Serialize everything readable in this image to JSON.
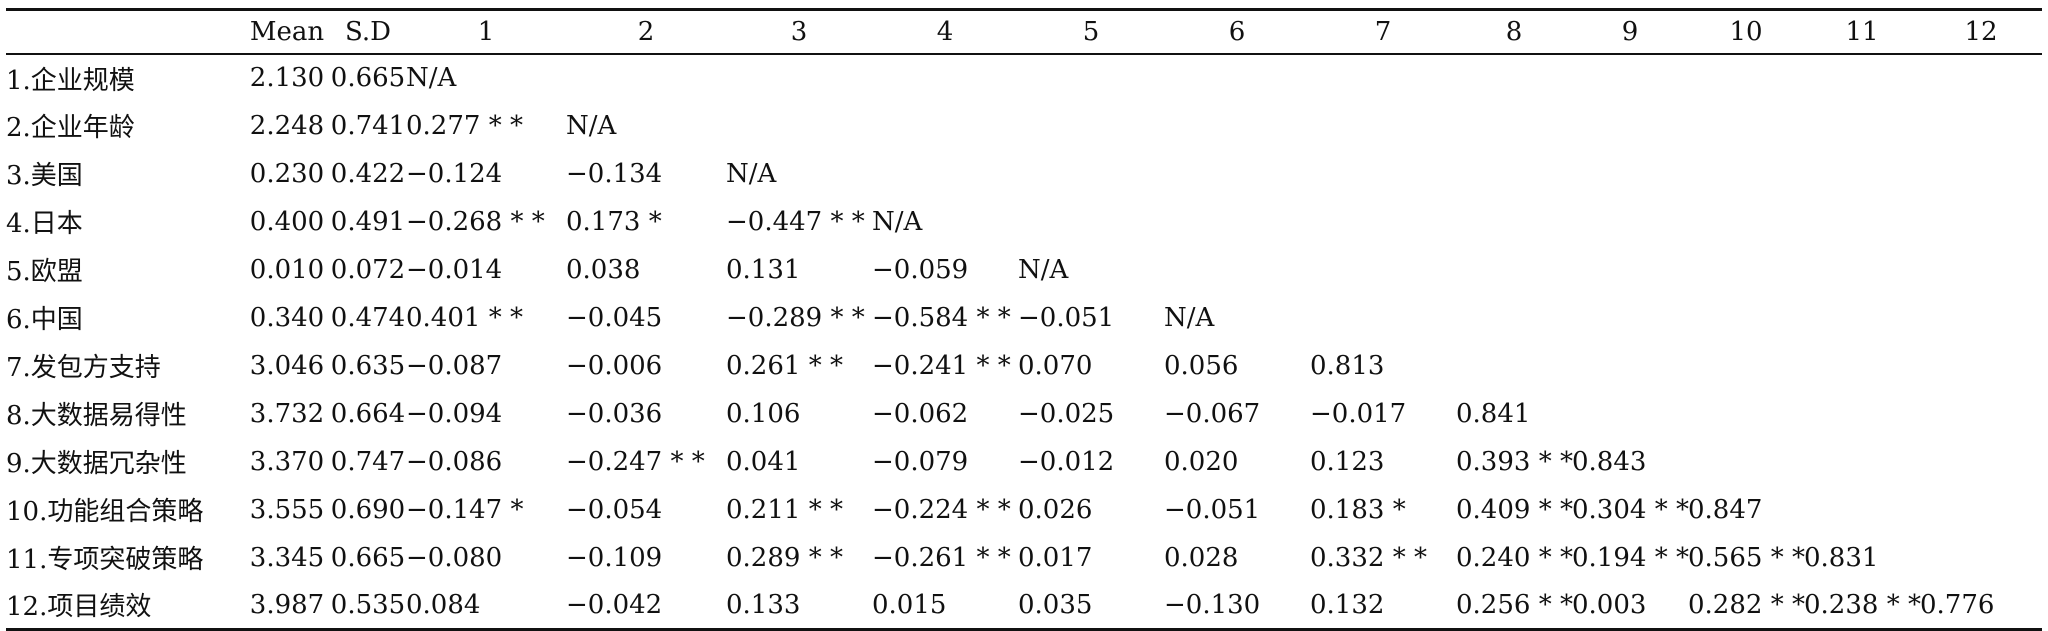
{
  "table": {
    "headers": [
      "",
      "Mean",
      "S.D",
      "1",
      "2",
      "3",
      "4",
      "5",
      "6",
      "7",
      "8",
      "9",
      "10",
      "11",
      "12"
    ],
    "rows": [
      {
        "label": "1.企业规模",
        "mean": "2.130",
        "sd": "0.665",
        "cells": [
          "N/A"
        ]
      },
      {
        "label": "2.企业年龄",
        "mean": "2.248",
        "sd": "0.741",
        "cells": [
          "0.277 * *",
          "N/A"
        ]
      },
      {
        "label": "3.美国",
        "mean": "0.230",
        "sd": "0.422",
        "cells": [
          "−0.124",
          "−0.134",
          "N/A"
        ]
      },
      {
        "label": "4.日本",
        "mean": "0.400",
        "sd": "0.491",
        "cells": [
          "−0.268 * *",
          "0.173 *",
          "−0.447 * *",
          "N/A"
        ]
      },
      {
        "label": "5.欧盟",
        "mean": "0.010",
        "sd": "0.072",
        "cells": [
          "−0.014",
          "0.038",
          "0.131",
          "−0.059",
          "N/A"
        ]
      },
      {
        "label": "6.中国",
        "mean": "0.340",
        "sd": "0.474",
        "cells": [
          "0.401 * *",
          "−0.045",
          "−0.289 * *",
          "−0.584 * *",
          "−0.051",
          "N/A"
        ]
      },
      {
        "label": "7.发包方支持",
        "mean": "3.046",
        "sd": "0.635",
        "cells": [
          "−0.087",
          "−0.006",
          "0.261 * *",
          "−0.241 * *",
          "0.070",
          "0.056",
          "0.813"
        ]
      },
      {
        "label": "8.大数据易得性",
        "mean": "3.732",
        "sd": "0.664",
        "cells": [
          "−0.094",
          "−0.036",
          "0.106",
          "−0.062",
          "−0.025",
          "−0.067",
          "−0.017",
          "0.841"
        ]
      },
      {
        "label": "9.大数据冗杂性",
        "mean": "3.370",
        "sd": "0.747",
        "cells": [
          "−0.086",
          "−0.247 * *",
          "0.041",
          "−0.079",
          "−0.012",
          "0.020",
          "0.123",
          "0.393 * *",
          "0.843"
        ]
      },
      {
        "label": "10.功能组合策略",
        "mean": "3.555",
        "sd": "0.690",
        "cells": [
          "−0.147 *",
          "−0.054",
          "0.211 * *",
          "−0.224 * *",
          "0.026",
          "−0.051",
          "0.183 *",
          "0.409 * *",
          "0.304 * *",
          "0.847"
        ]
      },
      {
        "label": "11.专项突破策略",
        "mean": "3.345",
        "sd": "0.665",
        "cells": [
          "−0.080",
          "−0.109",
          "0.289 * *",
          "−0.261 * *",
          "0.017",
          "0.028",
          "0.332 * *",
          "0.240 * *",
          "0.194 * *",
          "0.565 * *",
          "0.831"
        ]
      },
      {
        "label": "12.项目绩效",
        "mean": "3.987",
        "sd": "0.535",
        "cells": [
          "0.084",
          "−0.042",
          "0.133",
          "0.015",
          "0.035",
          "−0.130",
          "0.132",
          "0.256 * *",
          "0.003",
          "0.282 * *",
          "0.238 * *",
          "0.776"
        ]
      }
    ]
  }
}
